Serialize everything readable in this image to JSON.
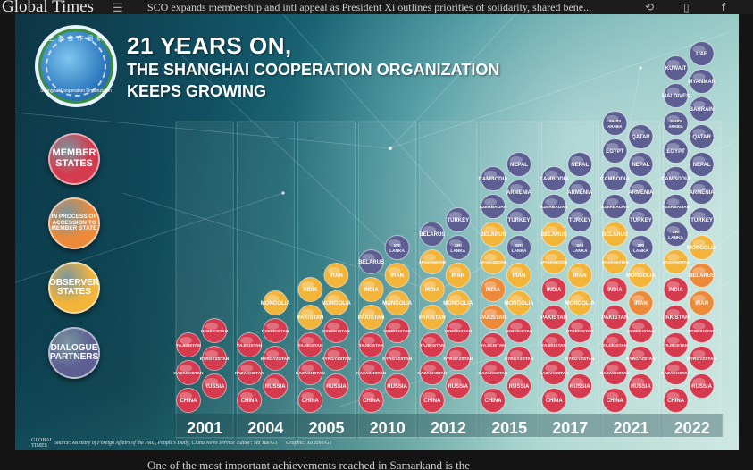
{
  "topbar": {
    "logo": "Global Times",
    "headline": "SCO expands membership and intl appeal as President Xi outlines priorities of solidarity, shared bene...",
    "menu_icon": "☰",
    "share_icon": "⟲",
    "device_icon": "▯",
    "facebook_icon": "f"
  },
  "caption": "One of the most important achievements reached in Samarkand is the",
  "infographic": {
    "title_line1": "21 YEARS ON,",
    "title_line2": "THE SHANGHAI COOPERATION ORGANIZATION",
    "title_line3": "KEEPS GROWING",
    "emblem_top": "上 海 合 作 组 织",
    "emblem_bottom": "Shanghai Cooperation Organization",
    "legend": [
      {
        "label": "MEMBER STATES",
        "color": "#d63a4e"
      },
      {
        "label": "IN PROCESS OF ACCESSION TO MEMBER STATE",
        "color": "#ec8a3a"
      },
      {
        "label": "OBSERVER STATES",
        "color": "#f3b43a"
      },
      {
        "label": "DIALOGUE PARTNERS",
        "color": "#5d5f93"
      }
    ],
    "footer": {
      "gt_logo": "GLOBAL TIMES",
      "source": "Source: Ministry of Foreign Affairs of the PRC, People's Daily, China News Service",
      "editor": "Editor: Shi Yue/GT",
      "graphic": "Graphic: Xu Zihe/GT"
    }
  },
  "chart_data": {
    "type": "table",
    "colors": {
      "member": "#d63a4e",
      "accession": "#ec8a3a",
      "observer": "#f3b43a",
      "partner": "#5d5f93"
    },
    "years": [
      {
        "year": "2001",
        "columns": [
          [
            "member:CHINA",
            "member:KAZAKHSTAN",
            "member:TAJIKISTAN"
          ],
          [
            "member:RUSSIA",
            "member:KYRGYZSTAN",
            "member:UZBEKISTAN"
          ]
        ]
      },
      {
        "year": "2004",
        "columns": [
          [
            "member:CHINA",
            "member:KAZAKHSTAN",
            "member:TAJIKISTAN"
          ],
          [
            "member:RUSSIA",
            "member:KYRGYZSTAN",
            "member:UZBEKISTAN",
            "observer:MONGOLIA"
          ]
        ]
      },
      {
        "year": "2005",
        "columns": [
          [
            "member:CHINA",
            "member:KAZAKHSTAN",
            "member:TAJIKISTAN",
            "observer:PAKISTAN",
            "observer:INDIA"
          ],
          [
            "member:RUSSIA",
            "member:KYRGYZSTAN",
            "member:UZBEKISTAN",
            "observer:MONGOLIA",
            "observer:IRAN"
          ]
        ]
      },
      {
        "year": "2010",
        "columns": [
          [
            "member:CHINA",
            "member:KAZAKHSTAN",
            "member:TAJIKISTAN",
            "observer:PAKISTAN",
            "observer:INDIA",
            "partner:BELARUS"
          ],
          [
            "member:RUSSIA",
            "member:KYRGYZSTAN",
            "member:UZBEKISTAN",
            "observer:MONGOLIA",
            "observer:IRAN",
            "partner:SRI LANKA"
          ]
        ]
      },
      {
        "year": "2012",
        "columns": [
          [
            "member:CHINA",
            "member:KAZAKHSTAN",
            "member:TAJIKISTAN",
            "observer:PAKISTAN",
            "observer:INDIA",
            "observer:AFGHANISTAN",
            "partner:BELARUS"
          ],
          [
            "member:RUSSIA",
            "member:KYRGYZSTAN",
            "member:UZBEKISTAN",
            "observer:MONGOLIA",
            "observer:IRAN",
            "partner:SRI LANKA",
            "partner:TURKEY"
          ]
        ]
      },
      {
        "year": "2015",
        "columns": [
          [
            "member:CHINA",
            "member:KAZAKHSTAN",
            "member:TAJIKISTAN",
            "accession:PAKISTAN",
            "accession:INDIA",
            "observer:AFGHANISTAN",
            "observer:BELARUS",
            "partner:AZERBAIJAN",
            "partner:CAMBODIA"
          ],
          [
            "member:RUSSIA",
            "member:KYRGYZSTAN",
            "member:UZBEKISTAN",
            "observer:MONGOLIA",
            "observer:IRAN",
            "partner:SRI LANKA",
            "partner:TURKEY",
            "partner:ARMENIA",
            "partner:NEPAL"
          ]
        ]
      },
      {
        "year": "2017",
        "columns": [
          [
            "member:CHINA",
            "member:KAZAKHSTAN",
            "member:TAJIKISTAN",
            "member:PAKISTAN",
            "member:INDIA",
            "observer:AFGHANISTAN",
            "observer:BELARUS",
            "partner:AZERBAIJAN",
            "partner:CAMBODIA"
          ],
          [
            "member:RUSSIA",
            "member:KYRGYZSTAN",
            "member:UZBEKISTAN",
            "observer:MONGOLIA",
            "observer:IRAN",
            "partner:SRI LANKA",
            "partner:TURKEY",
            "partner:ARMENIA",
            "partner:NEPAL"
          ]
        ]
      },
      {
        "year": "2021",
        "columns": [
          [
            "member:CHINA",
            "member:KAZAKHSTAN",
            "member:TAJIKISTAN",
            "member:PAKISTAN",
            "member:INDIA",
            "observer:AFGHANISTAN",
            "observer:BELARUS",
            "partner:AZERBAIJAN",
            "partner:CAMBODIA",
            "partner:EGYPT",
            "partner:SAUDI ARABIA"
          ],
          [
            "member:RUSSIA",
            "member:KYRGYZSTAN",
            "member:UZBEKISTAN",
            "accession:IRAN",
            "observer:MONGOLIA",
            "partner:SRI LANKA",
            "partner:TURKEY",
            "partner:ARMENIA",
            "partner:NEPAL",
            "partner:QATAR"
          ]
        ]
      },
      {
        "year": "2022",
        "columns": [
          [
            "member:CHINA",
            "member:KAZAKHSTAN",
            "member:TAJIKISTAN",
            "member:PAKISTAN",
            "member:INDIA",
            "observer:AFGHANISTAN",
            "partner:SRI LANKA",
            "partner:AZERBAIJAN",
            "partner:CAMBODIA",
            "partner:EGYPT",
            "partner:SAUDI ARABIA",
            "partner:MALDIVES",
            "partner:KUWAIT"
          ],
          [
            "member:RUSSIA",
            "member:KYRGYZSTAN",
            "member:UZBEKISTAN",
            "accession:IRAN",
            "accession:BELARUS",
            "observer:MONGOLIA",
            "partner:TURKEY",
            "partner:ARMENIA",
            "partner:NEPAL",
            "partner:QATAR",
            "partner:BAHRAIN",
            "partner:MYANMAR",
            "partner:UAE"
          ]
        ]
      }
    ]
  }
}
